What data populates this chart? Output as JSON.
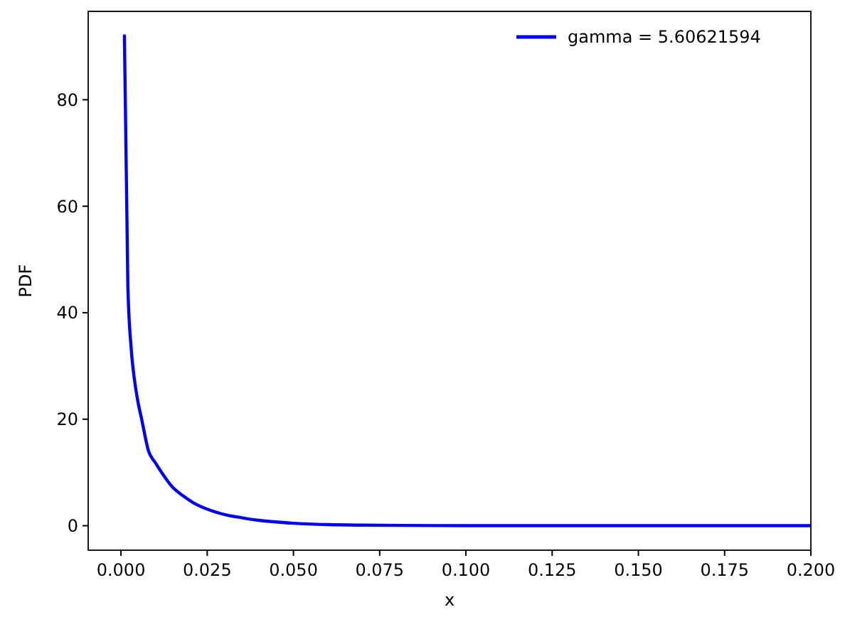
{
  "chart_data": {
    "type": "line",
    "xlabel": "x",
    "ylabel": "PDF",
    "x": [
      0.001,
      0.002,
      0.003,
      0.004,
      0.005,
      0.006,
      0.008,
      0.01,
      0.012,
      0.015,
      0.018,
      0.021,
      0.025,
      0.03,
      0.035,
      0.04,
      0.05,
      0.06,
      0.07,
      0.08,
      0.1,
      0.15,
      0.2
    ],
    "series": [
      {
        "name": "gamma = 5.60621594",
        "color": "#0000ff",
        "values": [
          92,
          45,
          33,
          27,
          23,
          20,
          14,
          11.8,
          9.8,
          7.2,
          5.6,
          4.3,
          3.1,
          2.1,
          1.5,
          1.0,
          0.45,
          0.2,
          0.1,
          0.05,
          0.01,
          0,
          0
        ]
      }
    ],
    "xlim": [
      -0.0095,
      0.2
    ],
    "ylim": [
      -4.6,
      96.6
    ],
    "xticks": [
      {
        "value": 0,
        "label": "0.000"
      },
      {
        "value": 0.025,
        "label": "0.025"
      },
      {
        "value": 0.05,
        "label": "0.050"
      },
      {
        "value": 0.075,
        "label": "0.075"
      },
      {
        "value": 0.1,
        "label": "0.100"
      },
      {
        "value": 0.125,
        "label": "0.125"
      },
      {
        "value": 0.15,
        "label": "0.150"
      },
      {
        "value": 0.175,
        "label": "0.175"
      },
      {
        "value": 0.2,
        "label": "0.200"
      }
    ],
    "yticks": [
      0,
      20,
      40,
      60,
      80
    ],
    "legend": "top right",
    "grid": false,
    "marker": "none",
    "line_style": "solid"
  }
}
